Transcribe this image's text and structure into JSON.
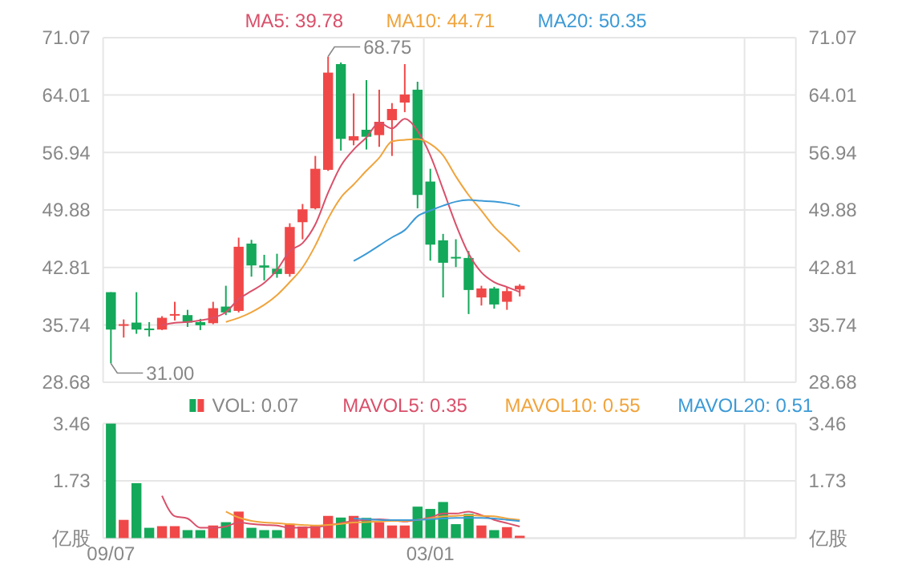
{
  "chart_data": [
    {
      "type": "candlestick",
      "legend": "top",
      "grid": true,
      "tick_labels": "y",
      "categories": [
        null,
        null,
        null,
        null,
        null,
        null,
        null,
        null,
        null,
        null,
        null,
        null,
        null,
        null,
        null,
        null,
        null,
        null,
        null,
        null,
        null,
        null,
        null,
        null,
        null,
        null,
        null,
        null,
        null,
        null,
        null,
        null,
        null,
        null,
        null,
        null,
        null,
        null,
        null,
        null,
        null,
        null,
        null,
        null,
        null,
        null,
        null,
        null,
        null,
        null,
        null,
        null,
        null,
        null
      ],
      "ohlc": [
        [
          39.76,
          39.76,
          31.0,
          35.16
        ],
        [
          35.7,
          36.41,
          34.18,
          35.82
        ],
        [
          36.02,
          39.76,
          34.64,
          35.16
        ],
        [
          35.29,
          36.08,
          34.31,
          35.16
        ],
        [
          35.16,
          36.81,
          35.1,
          36.61
        ],
        [
          36.94,
          38.58,
          36.28,
          37.07
        ],
        [
          36.94,
          37.59,
          35.49,
          36.02
        ],
        [
          36.08,
          36.48,
          35.1,
          35.69
        ],
        [
          35.95,
          38.58,
          35.82,
          37.79
        ],
        [
          37.99,
          40.55,
          36.94,
          37.27
        ],
        [
          37.46,
          46.47,
          37.27,
          45.35
        ],
        [
          45.74,
          46.2,
          41.67,
          43.05
        ],
        [
          43.05,
          44.36,
          41.21,
          42.79
        ],
        [
          42.65,
          44.49,
          41.54,
          42.0
        ],
        [
          42.0,
          48.24,
          41.67,
          47.78
        ],
        [
          48.37,
          50.61,
          46.27,
          49.95
        ],
        [
          50.08,
          56.52,
          49.95,
          54.94
        ],
        [
          54.81,
          68.75,
          54.68,
          66.77
        ],
        [
          67.82,
          68.02,
          57.18,
          58.62
        ],
        [
          58.42,
          64.21,
          57.83,
          58.95
        ],
        [
          59.74,
          65.85,
          57.31,
          58.88
        ],
        [
          59.08,
          64.67,
          57.64,
          60.72
        ],
        [
          60.92,
          63.02,
          56.52,
          62.3
        ],
        [
          63.09,
          67.82,
          61.91,
          64.08
        ],
        [
          64.67,
          65.65,
          50.08,
          51.72
        ],
        [
          53.37,
          54.94,
          43.64,
          45.61
        ],
        [
          46.14,
          46.93,
          39.11,
          43.38
        ],
        [
          44.1,
          46.27,
          42.85,
          43.97
        ],
        [
          43.97,
          44.82,
          37.07,
          40.03
        ],
        [
          39.11,
          40.55,
          38.12,
          40.22
        ],
        [
          40.22,
          40.42,
          37.73,
          38.25
        ],
        [
          38.58,
          40.42,
          37.59,
          39.89
        ],
        [
          40.09,
          40.75,
          39.24,
          40.55
        ],
        null,
        null,
        null,
        null,
        null,
        null,
        null,
        null,
        null,
        null,
        null,
        null,
        null,
        null,
        null,
        null,
        null,
        null,
        null,
        null,
        null
      ],
      "series": [
        {
          "name": "MA5: 39.78",
          "type": "line",
          "color": "#d9506a",
          "values": [
            null,
            null,
            null,
            null,
            35.7,
            36.0,
            36.1,
            36.3,
            36.6,
            37.3,
            38.9,
            39.9,
            40.9,
            42.5,
            44.8,
            45.8,
            48.1,
            52.0,
            55.3,
            57.3,
            58.8,
            60.6,
            59.9,
            61.1,
            59.6,
            56.6,
            52.4,
            48.1,
            44.5,
            42.2,
            41.0,
            40.4,
            39.78,
            null,
            null,
            null,
            null,
            null,
            null,
            null,
            null,
            null,
            null,
            null,
            null,
            null,
            null,
            null,
            null,
            null,
            null,
            null,
            null,
            null
          ]
        },
        {
          "name": "MA10: 44.71",
          "type": "line",
          "color": "#f0a43c",
          "values": [
            null,
            null,
            null,
            null,
            null,
            null,
            null,
            null,
            null,
            36.1,
            36.6,
            37.3,
            38.2,
            39.4,
            41.0,
            42.8,
            45.5,
            48.8,
            51.4,
            53.0,
            54.7,
            56.3,
            58.3,
            58.5,
            58.6,
            58.0,
            56.6,
            54.0,
            51.7,
            49.8,
            47.8,
            46.3,
            44.71,
            null,
            null,
            null,
            null,
            null,
            null,
            null,
            null,
            null,
            null,
            null,
            null,
            null,
            null,
            null,
            null,
            null,
            null,
            null,
            null,
            null
          ]
        },
        {
          "name": "MA20: 50.35",
          "type": "line",
          "color": "#3c9ad6",
          "values": [
            null,
            null,
            null,
            null,
            null,
            null,
            null,
            null,
            null,
            null,
            null,
            null,
            null,
            null,
            null,
            null,
            null,
            null,
            null,
            43.6,
            44.5,
            45.5,
            46.5,
            47.4,
            49.1,
            49.8,
            50.4,
            50.9,
            51.1,
            51.0,
            50.9,
            50.7,
            50.35,
            null,
            null,
            null,
            null,
            null,
            null,
            null,
            null,
            null,
            null,
            null,
            null,
            null,
            null,
            null,
            null,
            null,
            null,
            null,
            null,
            null
          ]
        }
      ],
      "ylim": [
        28.68,
        71.07
      ],
      "yticks": [
        28.68,
        35.74,
        42.81,
        49.88,
        56.94,
        64.01,
        71.07
      ],
      "y2lim": [
        28.68,
        71.07
      ],
      "y2ticks": [
        28.68,
        35.74,
        42.81,
        49.88,
        56.94,
        64.01,
        71.07
      ],
      "annotations": [
        "68.75",
        "31.00"
      ]
    },
    {
      "type": "bar",
      "legend": "top",
      "grid": true,
      "categories": [
        "09/07",
        null,
        null,
        null,
        null,
        null,
        null,
        null,
        null,
        null,
        null,
        null,
        null,
        null,
        null,
        null,
        null,
        null,
        null,
        null,
        null,
        null,
        null,
        null,
        null,
        "03/01",
        null,
        null,
        null,
        null,
        null,
        null,
        null,
        null,
        null,
        null,
        null,
        null,
        null,
        null,
        null,
        null,
        null,
        null,
        null,
        null,
        null,
        null,
        null,
        null,
        null,
        null,
        null,
        null
      ],
      "series": [
        {
          "name": "VOL: 0.07",
          "type": "bar",
          "colors": [
            "#14a85a",
            "#f04848",
            "#14a85a",
            "#14a85a",
            "#f04848",
            "#f04848",
            "#14a85a",
            "#14a85a",
            "#f04848",
            "#14a85a",
            "#f04848",
            "#14a85a",
            "#14a85a",
            "#14a85a",
            "#f04848",
            "#f04848",
            "#f04848",
            "#f04848",
            "#14a85a",
            "#f04848",
            "#14a85a",
            "#f04848",
            "#f04848",
            "#f04848",
            "#14a85a",
            "#14a85a",
            "#14a85a",
            "#14a85a",
            "#14a85a",
            "#f04848",
            "#14a85a",
            "#f04848",
            "#f04848",
            null,
            null,
            null,
            null,
            null,
            null,
            null,
            null,
            null,
            null,
            null,
            null,
            null,
            null,
            null,
            null,
            null,
            null,
            null,
            null,
            null
          ],
          "values": [
            3.46,
            0.55,
            1.66,
            0.31,
            0.36,
            0.36,
            0.24,
            0.24,
            0.38,
            0.48,
            0.8,
            0.31,
            0.24,
            0.24,
            0.43,
            0.35,
            0.38,
            0.67,
            0.62,
            0.67,
            0.61,
            0.48,
            0.38,
            0.38,
            0.95,
            0.88,
            1.09,
            0.42,
            0.73,
            0.38,
            0.24,
            0.33,
            0.07,
            null,
            null,
            null,
            null,
            null,
            null,
            null,
            null,
            null,
            null,
            null,
            null,
            null,
            null,
            null,
            null,
            null,
            null,
            null,
            null,
            null
          ]
        },
        {
          "name": "MAVOL5: 0.35",
          "type": "line",
          "color": "#d9506a",
          "values": [
            null,
            null,
            null,
            null,
            1.28,
            0.66,
            0.59,
            0.31,
            0.31,
            0.35,
            0.47,
            0.43,
            0.4,
            0.38,
            0.31,
            0.31,
            0.33,
            0.38,
            0.45,
            0.52,
            0.55,
            0.57,
            0.54,
            0.5,
            0.55,
            0.62,
            0.74,
            0.74,
            0.8,
            0.69,
            0.55,
            0.45,
            0.35,
            null,
            null,
            null,
            null,
            null,
            null,
            null,
            null,
            null,
            null,
            null,
            null,
            null,
            null,
            null,
            null,
            null,
            null,
            null,
            null,
            null
          ]
        },
        {
          "name": "MAVOL10: 0.55",
          "type": "line",
          "color": "#f0a43c",
          "values": [
            null,
            null,
            null,
            null,
            null,
            null,
            null,
            null,
            null,
            0.8,
            0.62,
            0.52,
            0.47,
            0.45,
            0.42,
            0.4,
            0.38,
            0.4,
            0.43,
            0.47,
            0.48,
            0.5,
            0.52,
            0.52,
            0.55,
            0.59,
            0.66,
            0.67,
            0.69,
            0.67,
            0.66,
            0.59,
            0.55,
            null,
            null,
            null,
            null,
            null,
            null,
            null,
            null,
            null,
            null,
            null,
            null,
            null,
            null,
            null,
            null,
            null,
            null,
            null,
            null,
            null
          ]
        },
        {
          "name": "MAVOL20: 0.51",
          "type": "line",
          "color": "#3c9ad6",
          "values": [
            null,
            null,
            null,
            null,
            null,
            null,
            null,
            null,
            null,
            null,
            null,
            null,
            null,
            null,
            null,
            null,
            null,
            null,
            null,
            0.59,
            0.57,
            0.55,
            0.54,
            0.54,
            0.55,
            0.57,
            0.59,
            0.61,
            0.61,
            0.61,
            0.59,
            0.55,
            0.51,
            null,
            null,
            null,
            null,
            null,
            null,
            null,
            null,
            null,
            null,
            null,
            null,
            null,
            null,
            null,
            null,
            null,
            null,
            null,
            null,
            null
          ]
        }
      ],
      "ylim": [
        0,
        3.46
      ],
      "yticks": [
        {
          "value": 0,
          "label": "亿股"
        },
        1.73,
        3.46
      ],
      "y2lim": [
        0,
        3.46
      ],
      "y2ticks": [
        {
          "value": 0,
          "label": "亿股"
        },
        1.73,
        3.46
      ]
    }
  ]
}
